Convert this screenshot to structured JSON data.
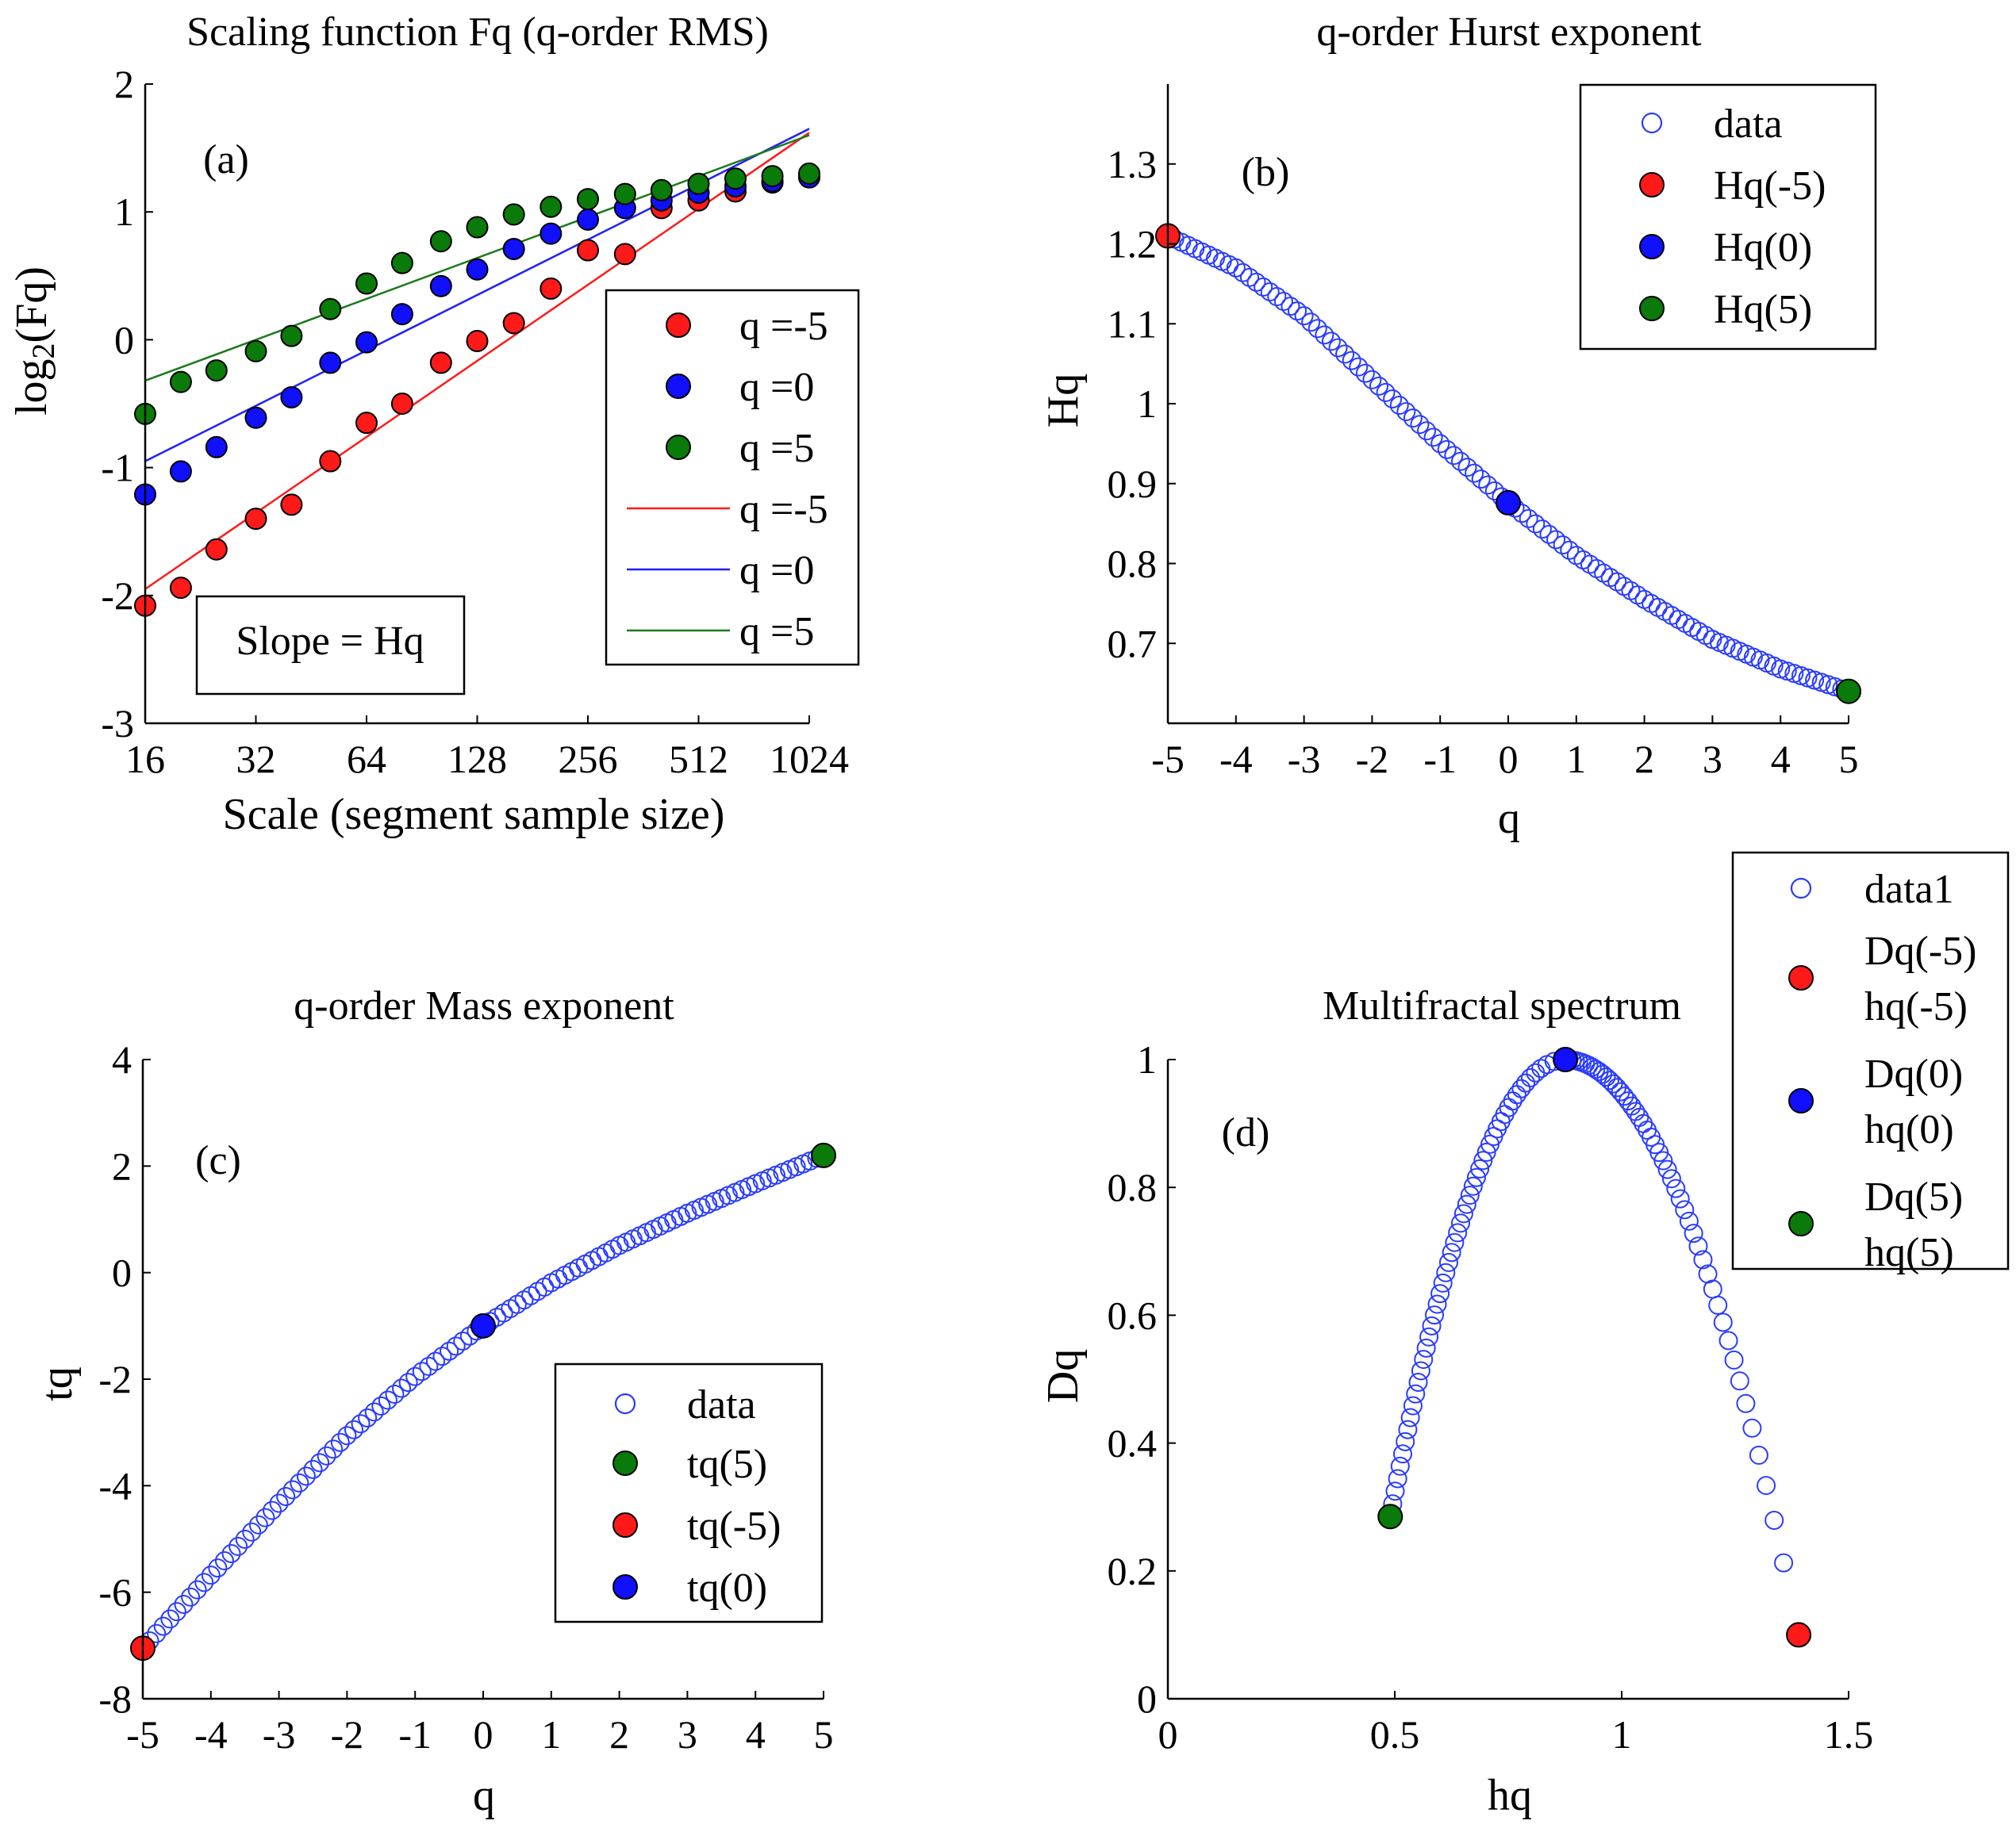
{
  "colors": {
    "red": "#ff1a1a",
    "blue": "#1010ff",
    "green": "#0a7a0a",
    "hollow": "#2a3cff",
    "line_red": "#ff1a1a",
    "line_blue": "#1f1fff",
    "line_green": "#1b7a1b"
  },
  "chart_data": [
    {
      "id": "a",
      "type": "scatter",
      "title": "Scaling function Fq (q-order RMS)",
      "xlabel": "Scale (segment sample size)",
      "ylabel_main": "log",
      "ylabel_sub": "2",
      "ylabel_tail": "(Fq)",
      "panel_label": "(a)",
      "xscale": "log2",
      "xlim": [
        16,
        1024
      ],
      "ylim": [
        -3,
        2
      ],
      "xticks": [
        16,
        32,
        64,
        128,
        256,
        512,
        1024
      ],
      "xtick_labels": [
        "16",
        "32",
        "64",
        "128",
        "256",
        "512",
        "1024"
      ],
      "yticks": [
        -3,
        -2,
        -1,
        0,
        1,
        2
      ],
      "ytick_labels": [
        "-3",
        "-2",
        "-1",
        "0",
        "1",
        "2"
      ],
      "annotation": "Slope = Hq",
      "x": [
        16,
        20,
        25,
        32,
        40,
        51,
        64,
        80,
        102,
        128,
        161,
        203,
        256,
        323,
        406,
        512,
        645,
        813,
        1024
      ],
      "series": [
        {
          "name": "q =-5",
          "color": "red",
          "kind": "points",
          "y": [
            -2.08,
            -1.94,
            -1.64,
            -1.4,
            -1.29,
            -0.95,
            -0.65,
            -0.5,
            -0.18,
            -0.01,
            0.13,
            0.4,
            0.7,
            0.67,
            1.03,
            1.09,
            1.16,
            1.23,
            1.28
          ]
        },
        {
          "name": "q =0",
          "color": "blue",
          "kind": "points",
          "y": [
            -1.21,
            -1.03,
            -0.84,
            -0.61,
            -0.45,
            -0.18,
            -0.02,
            0.2,
            0.42,
            0.55,
            0.71,
            0.83,
            0.94,
            1.03,
            1.09,
            1.15,
            1.2,
            1.24,
            1.27
          ]
        },
        {
          "name": "q =5",
          "color": "green",
          "kind": "points",
          "y": [
            -0.58,
            -0.33,
            -0.24,
            -0.09,
            0.03,
            0.24,
            0.44,
            0.6,
            0.77,
            0.88,
            0.98,
            1.04,
            1.1,
            1.14,
            1.17,
            1.22,
            1.26,
            1.28,
            1.3
          ]
        },
        {
          "name": "q =-5",
          "color": "line_red",
          "kind": "line",
          "x": [
            16,
            1024
          ],
          "y": [
            -1.95,
            1.62
          ]
        },
        {
          "name": "q =0",
          "color": "line_blue",
          "kind": "line",
          "x": [
            16,
            1024
          ],
          "y": [
            -0.95,
            1.65
          ]
        },
        {
          "name": "q =5",
          "color": "line_green",
          "kind": "line",
          "x": [
            16,
            1024
          ],
          "y": [
            -0.32,
            1.6
          ]
        }
      ],
      "legend": [
        "q =-5",
        "q =0",
        "q =5",
        "q =-5",
        "q =0",
        "q =5"
      ]
    },
    {
      "id": "b",
      "type": "scatter",
      "title": "q-order Hurst exponent",
      "xlabel": "q",
      "ylabel": "Hq",
      "panel_label": "(b)",
      "xlim": [
        -5,
        5
      ],
      "ylim": [
        0.6,
        1.4
      ],
      "xticks": [
        -5,
        -4,
        -3,
        -2,
        -1,
        0,
        1,
        2,
        3,
        4,
        5
      ],
      "xtick_labels": [
        "-5",
        "-4",
        "-3",
        "-2",
        "-1",
        "0",
        "1",
        "2",
        "3",
        "4",
        "5"
      ],
      "yticks": [
        0.7,
        0.8,
        0.9,
        1.0,
        1.1,
        1.2,
        1.3
      ],
      "ytick_labels": [
        "0.7",
        "0.8",
        "0.9",
        "1",
        "1.1",
        "1.2",
        "1.3"
      ],
      "curve": {
        "name": "data",
        "q_from": -5,
        "q_to": 5,
        "count": 101,
        "y_samples_q": [
          -5,
          -4,
          -3,
          -2,
          -1,
          0,
          1,
          2,
          3,
          4,
          5
        ],
        "y_samples": [
          1.21,
          1.17,
          1.11,
          1.03,
          0.95,
          0.876,
          0.81,
          0.755,
          0.705,
          0.668,
          0.64
        ]
      },
      "highlights": [
        {
          "name": "Hq(-5)",
          "color": "red",
          "x": -5,
          "y": 1.21
        },
        {
          "name": "Hq(0)",
          "color": "blue",
          "x": 0,
          "y": 0.876
        },
        {
          "name": "Hq(5)",
          "color": "green",
          "x": 5,
          "y": 0.64
        }
      ],
      "legend": [
        "data",
        "Hq(-5)",
        "Hq(0)",
        "Hq(5)"
      ]
    },
    {
      "id": "c",
      "type": "scatter",
      "title": "q-order Mass exponent",
      "xlabel": "q",
      "ylabel": "tq",
      "panel_label": "(c)",
      "xlim": [
        -5,
        5
      ],
      "ylim": [
        -8,
        4
      ],
      "xticks": [
        -5,
        -4,
        -3,
        -2,
        -1,
        0,
        1,
        2,
        3,
        4,
        5
      ],
      "xtick_labels": [
        "-5",
        "-4",
        "-3",
        "-2",
        "-1",
        "0",
        "1",
        "2",
        "3",
        "4",
        "5"
      ],
      "yticks": [
        -8,
        -6,
        -4,
        -2,
        0,
        2,
        4
      ],
      "ytick_labels": [
        "-8",
        "-6",
        "-4",
        "-2",
        "0",
        "2",
        "4"
      ],
      "curve": {
        "name": "data",
        "q_from": -5,
        "q_to": 5,
        "count": 101,
        "y_samples_q": [
          -5,
          -4,
          -3,
          -2,
          -1,
          0,
          1,
          2,
          3,
          4,
          5
        ],
        "y_samples": [
          -7.05,
          -5.68,
          -4.33,
          -3.06,
          -1.95,
          -1.0,
          -0.19,
          0.51,
          1.115,
          1.67,
          2.2
        ]
      },
      "highlights": [
        {
          "name": "tq(5)",
          "color": "green",
          "x": 5,
          "y": 2.2
        },
        {
          "name": "tq(-5)",
          "color": "red",
          "x": -5,
          "y": -7.05
        },
        {
          "name": "tq(0)",
          "color": "blue",
          "x": 0,
          "y": -1.0
        }
      ],
      "legend": [
        "data",
        "tq(5)",
        "tq(-5)",
        "tq(0)"
      ]
    },
    {
      "id": "d",
      "type": "scatter",
      "title": "Multifractal spectrum",
      "xlabel": "hq",
      "ylabel": "Dq",
      "panel_label": "(d)",
      "xlim": [
        0,
        1.5
      ],
      "ylim": [
        0,
        1
      ],
      "xticks": [
        0,
        0.5,
        1,
        1.5
      ],
      "xtick_labels": [
        "0",
        "0.5",
        "1",
        "1.5"
      ],
      "yticks": [
        0,
        0.2,
        0.4,
        0.6,
        0.8,
        1
      ],
      "ytick_labels": [
        "0",
        "0.2",
        "0.4",
        "0.6",
        "0.8",
        "1"
      ],
      "curve": {
        "name": "data1",
        "q_from": -5,
        "q_to": 5,
        "count": 101,
        "shape": "parabola",
        "apex": [
          0.876,
          1.0
        ],
        "left_end": [
          0.49,
          0.285
        ],
        "right_end": [
          1.39,
          0.1
        ]
      },
      "highlights": [
        {
          "name": "Dq(-5) hq(-5)",
          "color": "red",
          "x": 1.39,
          "y": 0.1
        },
        {
          "name": "Dq(0) hq(0)",
          "color": "blue",
          "x": 0.876,
          "y": 1.0
        },
        {
          "name": "Dq(5) hq(5)",
          "color": "green",
          "x": 0.49,
          "y": 0.285
        }
      ],
      "legend": [
        "data1",
        "Dq(-5)",
        "hq(-5)",
        "Dq(0)",
        "hq(0)",
        "Dq(5)",
        "hq(5)"
      ]
    }
  ]
}
